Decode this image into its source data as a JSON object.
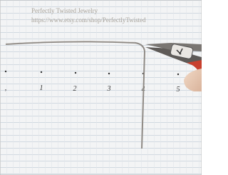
{
  "watermark": {
    "title": "Perfectly Twisted Jewelry",
    "url": "https://www.etsy.com/shop/PerfectlyTwisted"
  },
  "ruler_labels": [
    "1",
    "2",
    "3",
    "4",
    "5"
  ]
}
